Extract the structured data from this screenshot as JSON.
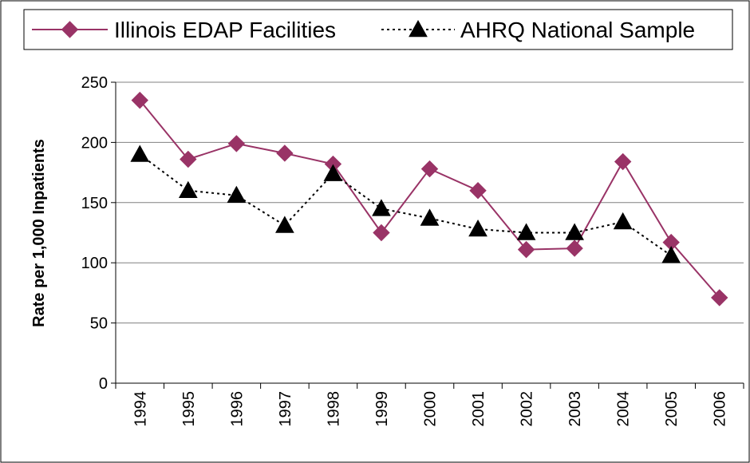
{
  "chart_data": {
    "type": "line",
    "y_label": "Rate per 1,000 Inpatients",
    "categories": [
      "1994",
      "1995",
      "1996",
      "1997",
      "1998",
      "1999",
      "2000",
      "2001",
      "2002",
      "2003",
      "2004",
      "2005",
      "2006"
    ],
    "series": [
      {
        "name": "Illinois EDAP Facilities",
        "color": "#993366",
        "marker": "diamond",
        "line_style": "solid",
        "values": [
          235,
          186,
          199,
          191,
          182,
          125,
          178,
          160,
          111,
          112,
          184,
          117,
          71
        ]
      },
      {
        "name": "AHRQ National Sample",
        "color": "#000000",
        "marker": "triangle",
        "line_style": "dotted",
        "values": [
          190,
          160,
          156,
          131,
          174,
          145,
          137,
          128,
          125,
          125,
          134,
          106,
          null
        ]
      }
    ],
    "ylim": [
      0,
      250
    ],
    "yticks": [
      0,
      50,
      100,
      150,
      200,
      250
    ],
    "grid": true,
    "legend": "top"
  }
}
